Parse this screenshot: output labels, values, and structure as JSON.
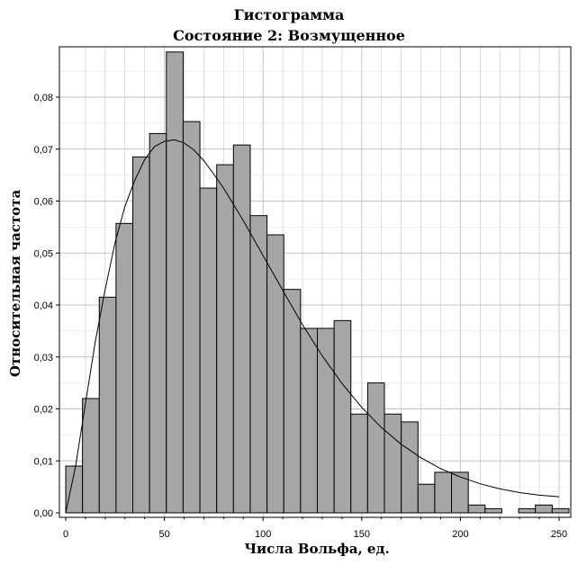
{
  "chart_data": {
    "type": "bar",
    "title": "Гистограмма",
    "subtitle": "Состояние 2: Возмущенное",
    "xlabel": "Числа Вольфа, ед.",
    "ylabel": "Относительная частота",
    "xlim": [
      0,
      255
    ],
    "ylim": [
      0,
      0.09
    ],
    "grid": true,
    "bin_width": 8.5,
    "x_ticks": [
      {
        "v": 0,
        "label": "0"
      },
      {
        "v": 50,
        "label": "50"
      },
      {
        "v": 100,
        "label": "100"
      },
      {
        "v": 150,
        "label": "150"
      },
      {
        "v": 200,
        "label": "200"
      },
      {
        "v": 250,
        "label": "250"
      }
    ],
    "y_ticks": [
      {
        "v": 0,
        "label": "0,00"
      },
      {
        "v": 0.01,
        "label": "0,01"
      },
      {
        "v": 0.02,
        "label": "0,02"
      },
      {
        "v": 0.03,
        "label": "0,03"
      },
      {
        "v": 0.04,
        "label": "0,04"
      },
      {
        "v": 0.05,
        "label": "0,05"
      },
      {
        "v": 0.06,
        "label": "0,06"
      },
      {
        "v": 0.07,
        "label": "0,07"
      },
      {
        "v": 0.08,
        "label": "0,08"
      }
    ],
    "bins": [
      {
        "x0": 0,
        "value": 0.009
      },
      {
        "x0": 8.5,
        "value": 0.022
      },
      {
        "x0": 17,
        "value": 0.0415
      },
      {
        "x0": 25.5,
        "value": 0.0557
      },
      {
        "x0": 34,
        "value": 0.0685
      },
      {
        "x0": 42.5,
        "value": 0.073
      },
      {
        "x0": 51,
        "value": 0.0887
      },
      {
        "x0": 59.5,
        "value": 0.0753
      },
      {
        "x0": 68,
        "value": 0.0625
      },
      {
        "x0": 76.5,
        "value": 0.067
      },
      {
        "x0": 85,
        "value": 0.0708
      },
      {
        "x0": 93.5,
        "value": 0.0572
      },
      {
        "x0": 102,
        "value": 0.0535
      },
      {
        "x0": 110.5,
        "value": 0.043
      },
      {
        "x0": 119,
        "value": 0.0355
      },
      {
        "x0": 127.5,
        "value": 0.0355
      },
      {
        "x0": 136,
        "value": 0.037
      },
      {
        "x0": 144.5,
        "value": 0.019
      },
      {
        "x0": 153,
        "value": 0.025
      },
      {
        "x0": 161.5,
        "value": 0.019
      },
      {
        "x0": 170,
        "value": 0.0175
      },
      {
        "x0": 178.5,
        "value": 0.0055
      },
      {
        "x0": 187,
        "value": 0.0078
      },
      {
        "x0": 195.5,
        "value": 0.0078
      },
      {
        "x0": 204,
        "value": 0.0015
      },
      {
        "x0": 212.5,
        "value": 0.0008
      },
      {
        "x0": 221,
        "value": 0
      },
      {
        "x0": 229.5,
        "value": 0.0008
      },
      {
        "x0": 238,
        "value": 0.0015
      },
      {
        "x0": 246.5,
        "value": 0.0008
      }
    ],
    "fit_curve": {
      "x": [
        0,
        5,
        10,
        15,
        20,
        25,
        30,
        35,
        40,
        45,
        50,
        55,
        60,
        65,
        70,
        75,
        80,
        90,
        100,
        110,
        120,
        130,
        140,
        150,
        160,
        170,
        180,
        190,
        200,
        210,
        220,
        230,
        240,
        250
      ],
      "y": [
        0,
        0.009,
        0.021,
        0.033,
        0.043,
        0.052,
        0.059,
        0.064,
        0.068,
        0.0705,
        0.0715,
        0.0718,
        0.0712,
        0.0698,
        0.0678,
        0.0652,
        0.0625,
        0.0562,
        0.0495,
        0.0428,
        0.0362,
        0.0302,
        0.0249,
        0.0203,
        0.0164,
        0.0132,
        0.0106,
        0.0085,
        0.0069,
        0.0056,
        0.0046,
        0.0039,
        0.0034,
        0.0031
      ]
    },
    "bar_fill": "#a6a6a6",
    "bar_stroke": "#000000",
    "grid_color": "#c4c4c4",
    "curve_color": "#000000"
  }
}
